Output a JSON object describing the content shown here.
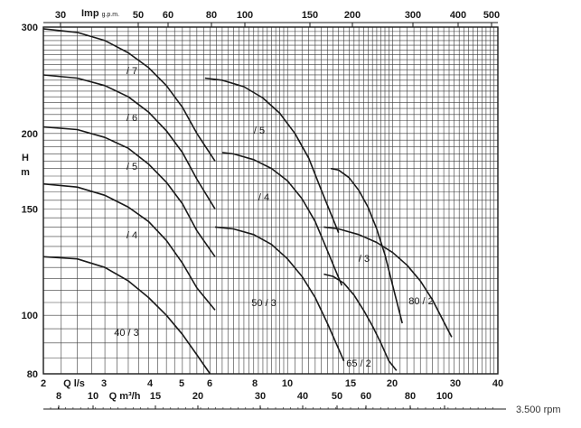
{
  "chart_data": {
    "type": "line",
    "axes": {
      "y": {
        "label_line1": "H",
        "label_line2": "m",
        "ticks": [
          80,
          100,
          150,
          200,
          300
        ],
        "ylim": [
          80,
          300
        ],
        "scale": "log"
      },
      "x_bottom_ls": {
        "label": "Q  l/s",
        "ticks": [
          2,
          3,
          4,
          5,
          6,
          8,
          10,
          15,
          20,
          30,
          40
        ],
        "xlim": [
          2,
          40
        ],
        "scale": "log"
      },
      "x_bottom_m3h": {
        "label": "Q  m³/h",
        "ticks": [
          8,
          10,
          15,
          20,
          30,
          40,
          50,
          60,
          80,
          100
        ]
      },
      "x_top_gpm": {
        "label": "Imp",
        "label_unit": "g.p.m.",
        "ticks": [
          30,
          50,
          60,
          80,
          100,
          150,
          200,
          300,
          400,
          500
        ]
      }
    },
    "grid": true,
    "rpm_note": "3.500 rpm",
    "series": [
      {
        "name": "40 / 3",
        "x": [
          2,
          2.5,
          3,
          3.5,
          4,
          4.5,
          5,
          5.5,
          6
        ],
        "y": [
          125,
          124,
          120,
          114,
          107,
          100,
          93,
          86,
          80
        ]
      },
      {
        "name": "/ 4",
        "x": [
          2,
          2.5,
          3,
          3.5,
          4,
          4.5,
          5,
          5.5,
          6.2
        ],
        "y": [
          165,
          163,
          158,
          151,
          143,
          133,
          122,
          111,
          102
        ]
      },
      {
        "name": "/ 5",
        "x": [
          2,
          2.5,
          3,
          3.5,
          4,
          4.5,
          5,
          5.5,
          6.2
        ],
        "y": [
          205,
          203,
          197,
          189,
          178,
          166,
          153,
          138,
          125
        ]
      },
      {
        "name": "/ 6",
        "x": [
          2,
          2.5,
          3,
          3.5,
          4,
          4.5,
          5,
          5.5,
          6.2
        ],
        "y": [
          250,
          247,
          240,
          230,
          217,
          202,
          186,
          168,
          150
        ]
      },
      {
        "name": "/ 7",
        "x": [
          2,
          2.5,
          3,
          3.5,
          4,
          4.5,
          5,
          5.5,
          6.2
        ],
        "y": [
          298,
          294,
          285,
          272,
          257,
          240,
          221,
          200,
          180
        ]
      },
      {
        "name": "50 / 3",
        "x": [
          6.2,
          7,
          8,
          9,
          10,
          11,
          12,
          13,
          14.5
        ],
        "y": [
          140,
          139,
          136,
          131,
          124,
          116,
          107,
          97,
          84
        ]
      },
      {
        "name": "/ 4",
        "x": [
          6.5,
          7,
          8,
          9,
          10,
          11,
          12,
          13,
          14.3
        ],
        "y": [
          186,
          185,
          181,
          175,
          167,
          156,
          143,
          128,
          112
        ]
      },
      {
        "name": "/ 5",
        "x": [
          5.8,
          6.5,
          7.5,
          8.5,
          9.5,
          10.5,
          11.5,
          12.5,
          14
        ],
        "y": [
          247,
          245,
          239,
          229,
          216,
          200,
          182,
          161,
          137
        ]
      },
      {
        "name": "65 / 2",
        "x": [
          12.7,
          13.5,
          14.5,
          15.5,
          16.5,
          17.5,
          18.5,
          19.5,
          20.5
        ],
        "y": [
          117,
          116,
          113,
          108,
          102,
          96,
          90,
          84,
          81
        ]
      },
      {
        "name": "/ 3",
        "x": [
          13.3,
          14,
          15,
          16,
          17,
          18,
          19,
          20,
          21.3
        ],
        "y": [
          175,
          174,
          169,
          161,
          151,
          139,
          126,
          112,
          97
        ]
      },
      {
        "name": "80 / 2",
        "x": [
          12.7,
          14,
          16,
          18,
          20,
          22,
          24,
          26,
          29.5
        ],
        "y": [
          140,
          139,
          136,
          132,
          127,
          121,
          114,
          106,
          92
        ]
      }
    ]
  }
}
